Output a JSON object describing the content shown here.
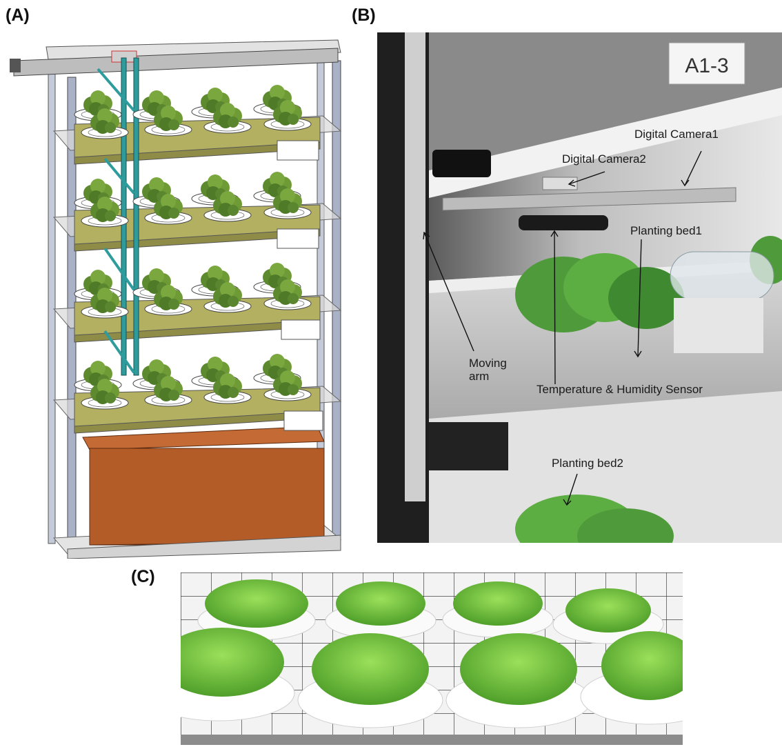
{
  "panel_labels": {
    "a": "(A)",
    "b": "(B)",
    "c": "(C)"
  },
  "photo_b": {
    "shelf_tag": "A1-3",
    "annotations": {
      "digital_camera_1": "Digital Camera1",
      "digital_camera_2": "Digital Camera2",
      "planting_bed_1": "Planting bed1",
      "moving_arm": "Moving arm",
      "temp_humidity_sensor": "Temperature & Humidity  Sensor",
      "planting_bed_2": "Planting bed2"
    }
  },
  "colors": {
    "frame": "#a9b2c6",
    "shelf": "#d6d6d6",
    "tray": "#b3b061",
    "arm": "#2e9c9c",
    "tank": "#b35c28",
    "lettuce": "#5d8a2e",
    "photo_lettuce": "#6cc43a"
  }
}
